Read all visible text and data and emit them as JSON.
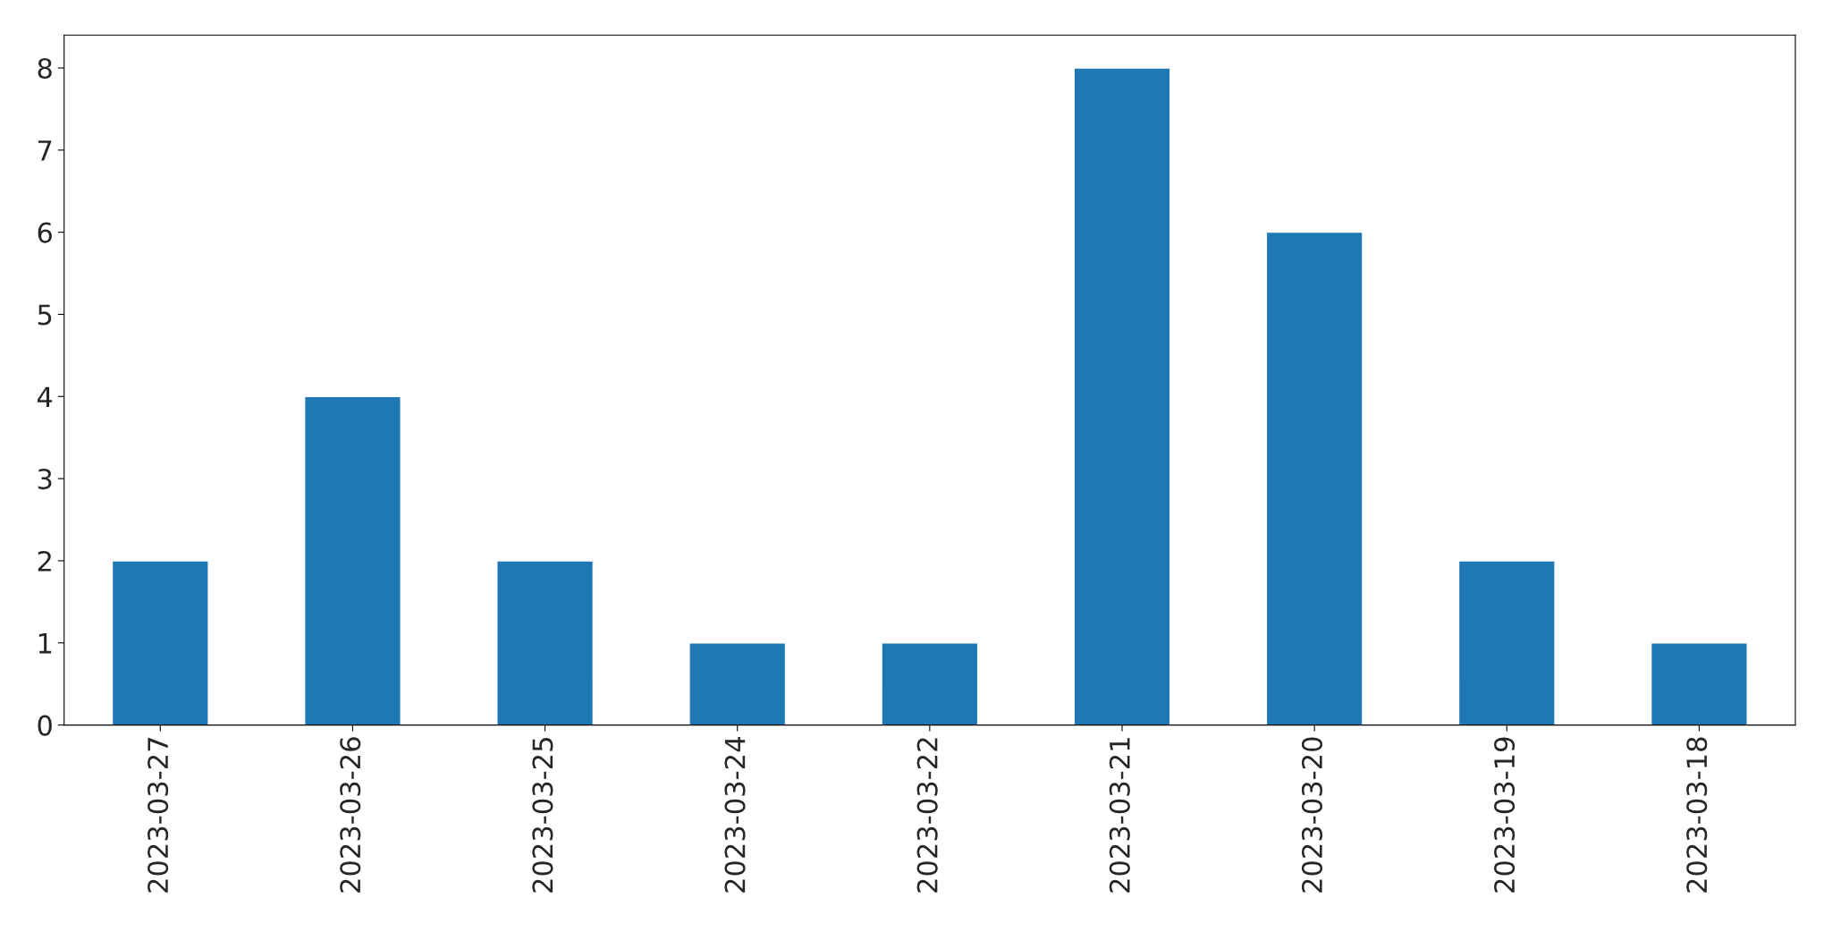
{
  "chart_data": {
    "type": "bar",
    "categories": [
      "2023-03-27",
      "2023-03-26",
      "2023-03-25",
      "2023-03-24",
      "2023-03-22",
      "2023-03-21",
      "2023-03-20",
      "2023-03-19",
      "2023-03-18"
    ],
    "values": [
      2,
      4,
      2,
      1,
      1,
      8,
      6,
      2,
      1
    ],
    "color": "#1f77b4",
    "ylim": [
      0,
      8.4
    ],
    "yticks": [
      0,
      1,
      2,
      3,
      4,
      5,
      6,
      7,
      8
    ],
    "grid": false,
    "legend": false
  }
}
